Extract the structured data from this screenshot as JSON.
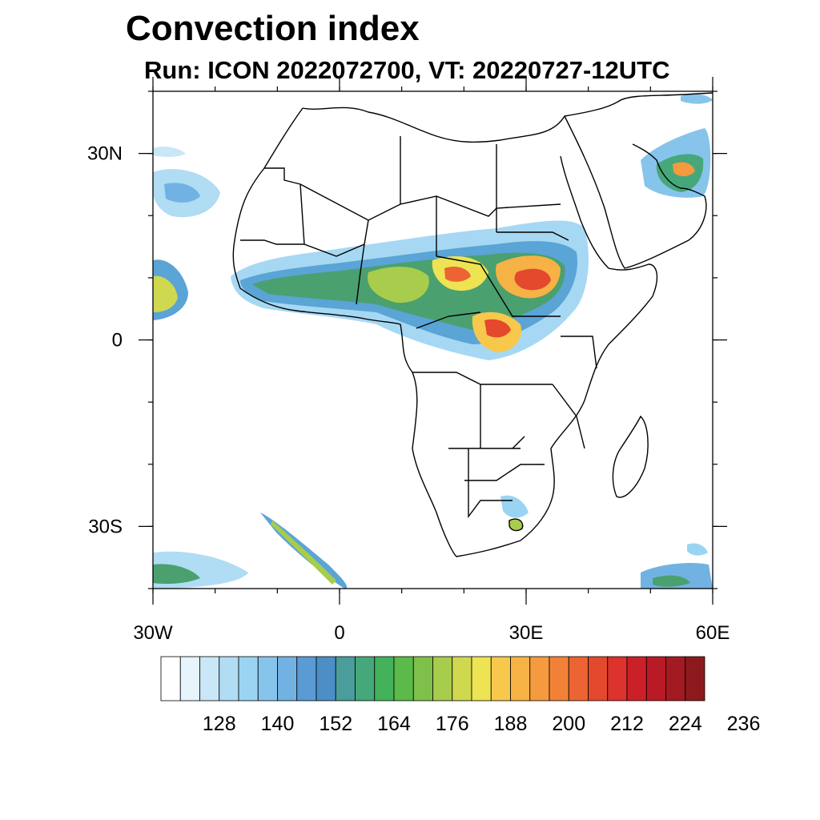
{
  "title": "Convection index",
  "subtitle": "Run: ICON 2022072700,  VT: 20220727-12UTC",
  "map": {
    "lon_range": [
      -30,
      60
    ],
    "lat_range": [
      -40,
      40
    ],
    "lat_ticks": [
      {
        "value": 30,
        "label": "30N"
      },
      {
        "value": 0,
        "label": "0"
      },
      {
        "value": -30,
        "label": "30S"
      }
    ],
    "lon_ticks": [
      {
        "value": -30,
        "label": "30W"
      },
      {
        "value": 0,
        "label": "0"
      },
      {
        "value": 30,
        "label": "30E"
      },
      {
        "value": 60,
        "label": "60E"
      }
    ],
    "minor_lat_ticks": [
      40,
      30,
      20,
      10,
      0,
      -10,
      -20,
      -30,
      -40
    ],
    "minor_lon_ticks": [
      -30,
      -20,
      -10,
      0,
      10,
      20,
      30,
      40,
      50,
      60
    ]
  },
  "colorbar": {
    "colors": [
      "#ffffff",
      "#e6f4fb",
      "#c9e7f7",
      "#b0dcf4",
      "#9ad4f2",
      "#87c4ec",
      "#72b2e3",
      "#5a9bd4",
      "#4b8fc6",
      "#4a9d9a",
      "#46a87a",
      "#43b25a",
      "#5cba4a",
      "#7fc04a",
      "#a8cc4c",
      "#cfd84f",
      "#eee352",
      "#f7c84c",
      "#f6b244",
      "#f59a3e",
      "#f28138",
      "#ec6433",
      "#e4492e",
      "#dc332c",
      "#cc2029",
      "#b81a26",
      "#a31a22",
      "#8c1a1c"
    ],
    "tick_labels": [
      "128",
      "140",
      "152",
      "164",
      "176",
      "188",
      "200",
      "212",
      "224",
      "236"
    ]
  }
}
